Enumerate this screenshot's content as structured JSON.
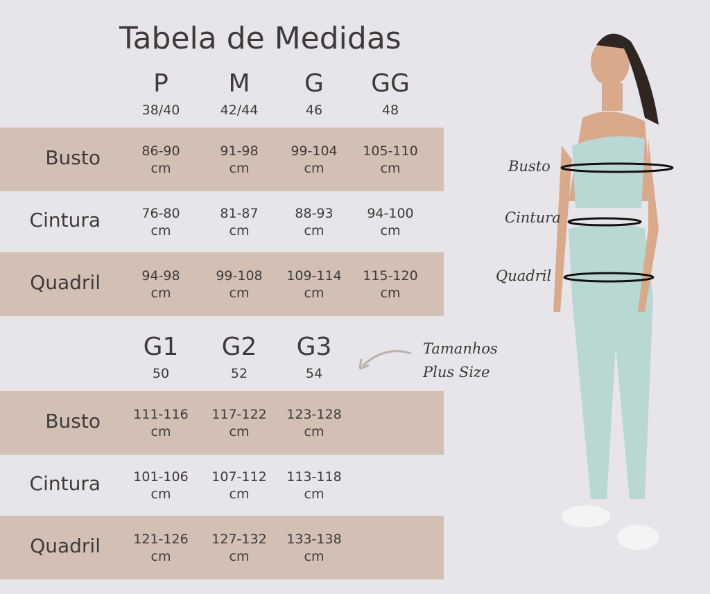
{
  "title": "Tabela de Medidas",
  "table1": {
    "sizes": [
      {
        "label": "P",
        "num": "38/40"
      },
      {
        "label": "M",
        "num": "42/44"
      },
      {
        "label": "G",
        "num": "46"
      },
      {
        "label": "GG",
        "num": "48"
      }
    ],
    "rows": [
      {
        "label": "Busto",
        "values": [
          "86-90",
          "91-98",
          "99-104",
          "105-110"
        ]
      },
      {
        "label": "Cintura",
        "values": [
          "76-80",
          "81-87",
          "88-93",
          "94-100"
        ]
      },
      {
        "label": "Quadril",
        "values": [
          "94-98",
          "99-108",
          "109-114",
          "115-120"
        ]
      }
    ]
  },
  "table2": {
    "sizes": [
      {
        "label": "G1",
        "num": "50"
      },
      {
        "label": "G2",
        "num": "52"
      },
      {
        "label": "G3",
        "num": "54"
      }
    ],
    "rows": [
      {
        "label": "Busto",
        "values": [
          "111-116",
          "117-122",
          "123-128"
        ]
      },
      {
        "label": "Cintura",
        "values": [
          "101-106",
          "107-112",
          "113-118"
        ]
      },
      {
        "label": "Quadril",
        "values": [
          "121-126",
          "127-132",
          "133-138"
        ]
      }
    ]
  },
  "unit": "cm",
  "plus_note": [
    "Tamanhos",
    "Plus Size"
  ],
  "figure_labels": {
    "busto": "Busto",
    "cintura": "Cintura",
    "quadril": "Quadril"
  },
  "colors": {
    "background": "#e7e5e9",
    "band": "#d3c0b4",
    "outfit": "#b9d8d4"
  }
}
